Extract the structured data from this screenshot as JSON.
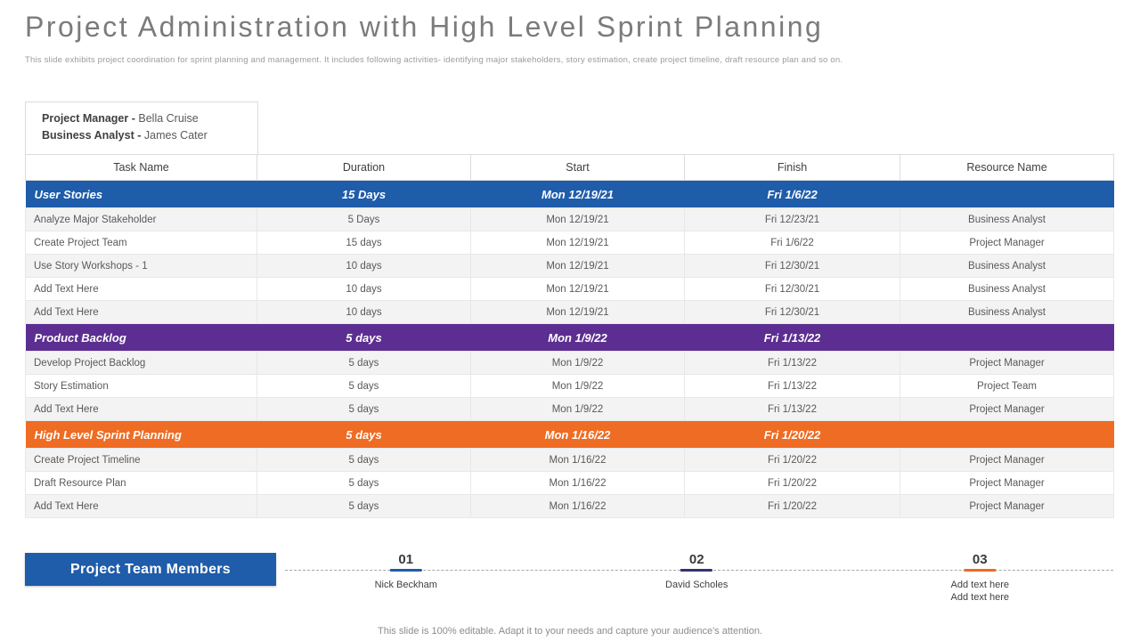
{
  "slide": {
    "title": "Project Administration with High Level Sprint Planning",
    "subtitle": "This slide exhibits project coordination for sprint planning and management.  It includes following activities- identifying major stakeholders, story estimation, create project timeline,  draft resource plan and so on.",
    "footer": "This slide is 100% editable. Adapt it to your needs and capture your audience's attention."
  },
  "info_box": {
    "lines": [
      {
        "label": "Project  Manager -",
        "value": "Bella Cruise"
      },
      {
        "label": "Business Analyst -",
        "value": "James Cater"
      }
    ]
  },
  "table": {
    "columns": [
      "Task Name",
      "Duration",
      "Start",
      "Finish",
      "Resource Name"
    ],
    "sections": [
      {
        "color": "#1F5CA9",
        "header": {
          "name": "User Stories",
          "duration": "15 Days",
          "start": "Mon 12/19/21",
          "finish": "Fri 1/6/22",
          "resource": ""
        },
        "rows": [
          [
            "Analyze Major Stakeholder",
            "5 Days",
            "Mon 12/19/21",
            "Fri 12/23/21",
            "Business Analyst"
          ],
          [
            "Create Project Team",
            "15 days",
            "Mon 12/19/21",
            "Fri 1/6/22",
            "Project Manager"
          ],
          [
            "Use Story Workshops - 1",
            "10 days",
            "Mon 12/19/21",
            "Fri 12/30/21",
            "Business Analyst"
          ],
          [
            "Add Text Here",
            "10 days",
            "Mon 12/19/21",
            "Fri 12/30/21",
            "Business Analyst"
          ],
          [
            "Add Text Here",
            "10 days",
            "Mon 12/19/21",
            "Fri 12/30/21",
            "Business Analyst"
          ]
        ]
      },
      {
        "color": "#5C2E91",
        "header": {
          "name": "Product Backlog",
          "duration": "5 days",
          "start": "Mon 1/9/22",
          "finish": "Fri 1/13/22",
          "resource": ""
        },
        "rows": [
          [
            "Develop  Project Backlog",
            "5 days",
            "Mon 1/9/22",
            "Fri 1/13/22",
            "Project Manager"
          ],
          [
            "Story Estimation",
            "5 days",
            "Mon 1/9/22",
            "Fri 1/13/22",
            "Project Team"
          ],
          [
            "Add Text Here",
            "5 days",
            "Mon 1/9/22",
            "Fri 1/13/22",
            "Project Manager"
          ]
        ]
      },
      {
        "color": "#EE6C23",
        "header": {
          "name": "High Level Sprint Planning",
          "duration": "5 days",
          "start": "Mon 1/16/22",
          "finish": "Fri 1/20/22",
          "resource": ""
        },
        "rows": [
          [
            "Create Project Timeline",
            "5 days",
            "Mon 1/16/22",
            "Fri 1/20/22",
            "Project Manager"
          ],
          [
            "Draft Resource Plan",
            "5 days",
            "Mon 1/16/22",
            "Fri 1/20/22",
            "Project Manager"
          ],
          [
            "Add Text Here",
            "5 days",
            "Mon 1/16/22",
            "Fri 1/20/22",
            "Project Manager"
          ]
        ]
      }
    ]
  },
  "team": {
    "button_label": "Project Team Members",
    "members": [
      {
        "number": "01",
        "accent": "#1F5CA9",
        "lines": [
          "Nick Beckham"
        ]
      },
      {
        "number": "02",
        "accent": "#303372",
        "lines": [
          "David Scholes"
        ]
      },
      {
        "number": "03",
        "accent": "#EE6C23",
        "lines": [
          "Add text here",
          "Add text here"
        ]
      }
    ]
  }
}
